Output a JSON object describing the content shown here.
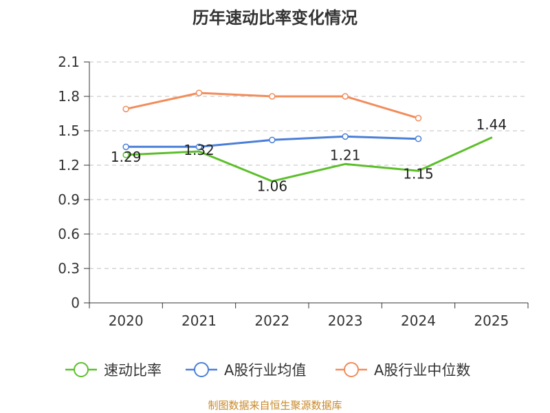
{
  "chart_data": {
    "type": "line",
    "title": "历年速动比率变化情况",
    "categories": [
      "2020",
      "2021",
      "2022",
      "2023",
      "2024",
      "2025"
    ],
    "y_ticks": [
      "0",
      "0.3",
      "0.6",
      "0.9",
      "1.2",
      "1.5",
      "1.8",
      "2.1"
    ],
    "ylim": [
      0,
      2.1
    ],
    "grid": true,
    "series": [
      {
        "name": "速动比率",
        "color": "#5cbf2a",
        "values": [
          1.29,
          1.32,
          1.06,
          1.21,
          1.15,
          1.44
        ],
        "labels": [
          "1.29",
          "1.32",
          "1.06",
          "1.21",
          "1.15",
          "1.44"
        ],
        "markers": [
          true,
          false,
          false,
          false,
          false,
          false
        ]
      },
      {
        "name": "A股行业均值",
        "color": "#4a7fd8",
        "values": [
          1.36,
          1.36,
          1.42,
          1.45,
          1.43,
          null
        ],
        "markers": [
          true,
          true,
          true,
          true,
          true,
          false
        ]
      },
      {
        "name": "A股行业中位数",
        "color": "#f28c5a",
        "values": [
          1.69,
          1.83,
          1.8,
          1.8,
          1.61,
          null
        ],
        "markers": [
          true,
          true,
          true,
          true,
          true,
          false
        ]
      }
    ],
    "legend_position": "bottom",
    "source": "制图数据来自恒生聚源数据库"
  }
}
